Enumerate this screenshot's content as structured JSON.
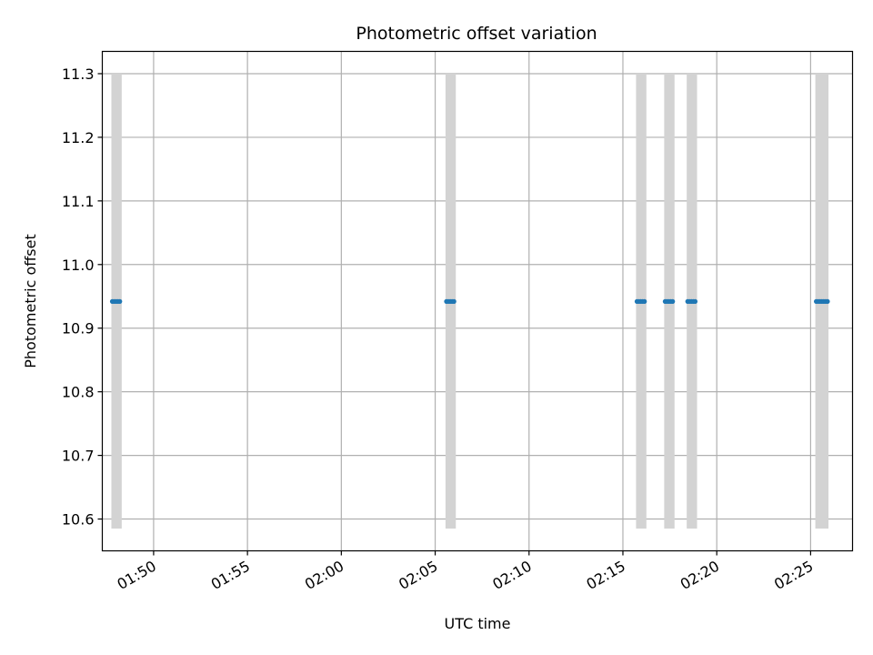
{
  "chart_data": {
    "type": "scatter",
    "title": "Photometric offset variation",
    "xlabel": "UTC time",
    "ylabel": "Photometric offset",
    "x_is_time": true,
    "xlim": [
      "01:47:16",
      "02:27:14"
    ],
    "ylim": [
      10.55,
      11.335
    ],
    "grid": true,
    "x_ticks": [
      "01:50",
      "01:55",
      "02:00",
      "02:05",
      "02:10",
      "02:15",
      "02:20",
      "02:25"
    ],
    "y_ticks": [
      "10.6",
      "10.7",
      "10.8",
      "10.9",
      "11.0",
      "11.1",
      "11.2",
      "11.3"
    ],
    "y_tick_values": [
      10.6,
      10.7,
      10.8,
      10.9,
      11.0,
      11.1,
      11.2,
      11.3
    ],
    "bands": {
      "color": "#d3d3d3",
      "ymin": 10.585,
      "ymax": 11.3,
      "x": [
        [
          "01:47:45",
          "01:48:18"
        ],
        [
          "02:05:33",
          "02:06:06"
        ],
        [
          "02:15:42",
          "02:16:15"
        ],
        [
          "02:17:12",
          "02:17:45"
        ],
        [
          "02:18:24",
          "02:18:57"
        ],
        [
          "02:25:15",
          "02:25:57"
        ]
      ]
    },
    "series": [
      {
        "color": "#1f77b4",
        "x": [
          "01:47:48",
          "01:47:54",
          "01:48:00",
          "01:48:06",
          "01:48:12",
          "02:05:36",
          "02:05:42",
          "02:05:48",
          "02:05:54",
          "02:06:00",
          "02:15:45",
          "02:15:51",
          "02:15:57",
          "02:16:03",
          "02:16:09",
          "02:17:15",
          "02:17:21",
          "02:17:27",
          "02:17:33",
          "02:17:39",
          "02:18:27",
          "02:18:33",
          "02:18:39",
          "02:18:45",
          "02:18:51",
          "02:25:18",
          "02:25:24",
          "02:25:30",
          "02:25:36",
          "02:25:42",
          "02:25:48",
          "02:25:54"
        ],
        "y": [
          10.942,
          10.942,
          10.942,
          10.942,
          10.942,
          10.942,
          10.942,
          10.942,
          10.942,
          10.942,
          10.942,
          10.942,
          10.942,
          10.942,
          10.942,
          10.942,
          10.942,
          10.942,
          10.942,
          10.942,
          10.942,
          10.942,
          10.942,
          10.942,
          10.942,
          10.942,
          10.942,
          10.942,
          10.942,
          10.942,
          10.942,
          10.942
        ]
      }
    ]
  }
}
